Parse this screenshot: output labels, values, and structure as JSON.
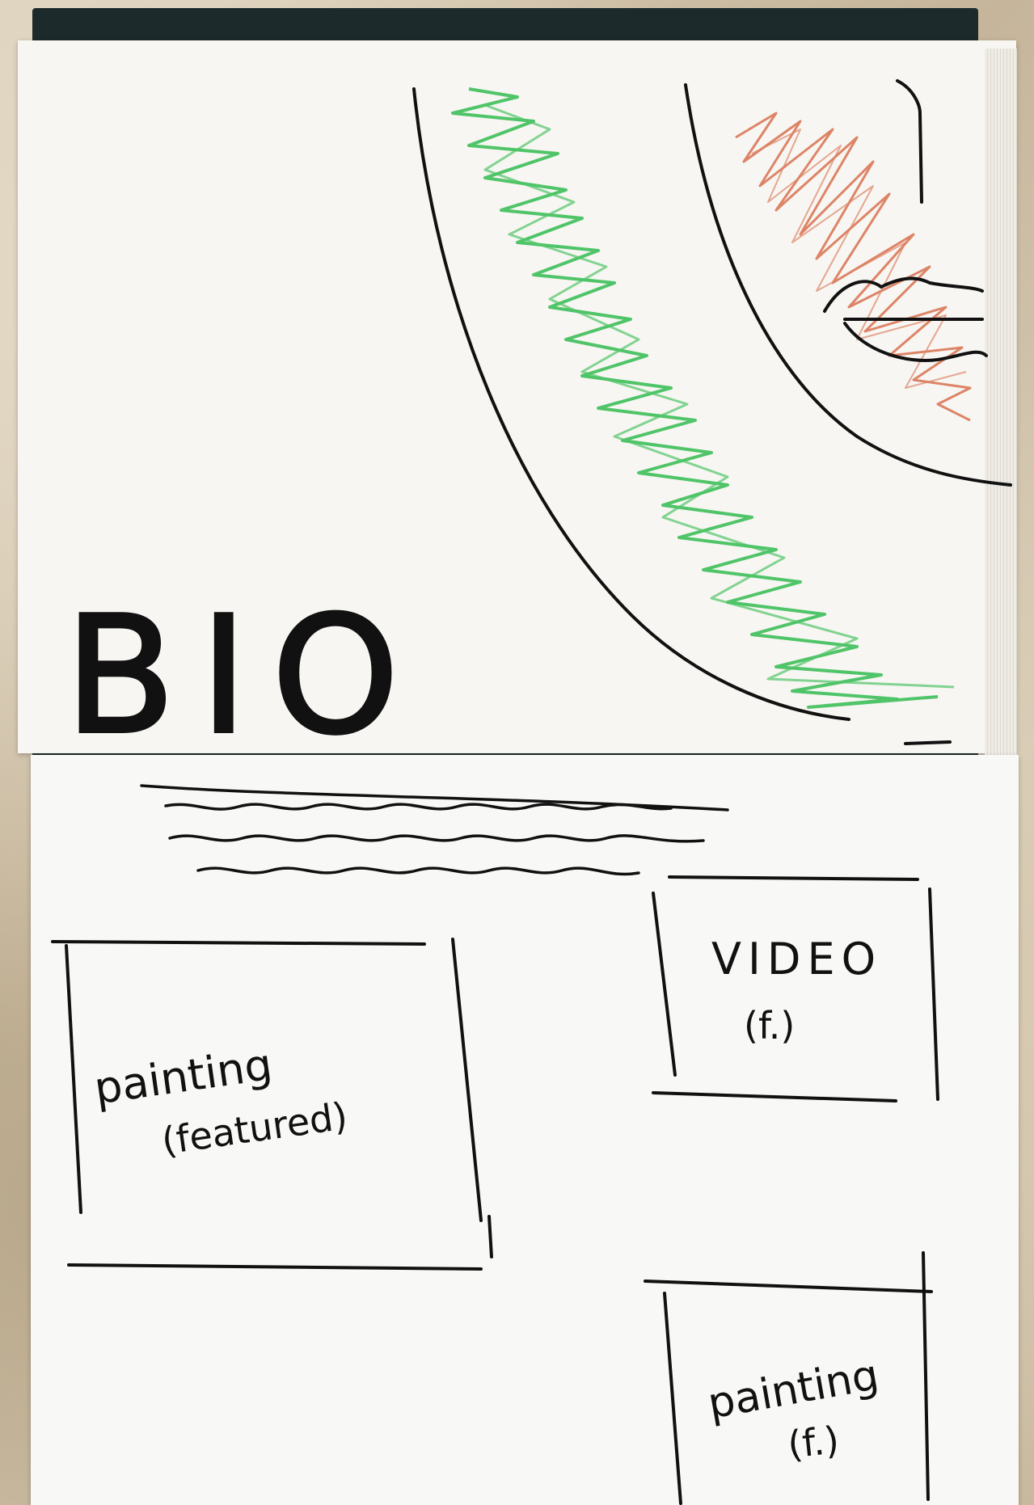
{
  "sketch": {
    "bio_label": "BIO",
    "featured_painting": {
      "title": "painting",
      "subtitle": "(featured)"
    },
    "video_box": {
      "title": "VIDEO",
      "subtitle": "(f.)"
    },
    "painting_box": {
      "title": "painting",
      "subtitle": "(f.)"
    },
    "colors": {
      "ink": "#111111",
      "green_scribble": "#3fbf5a",
      "red_scribble": "#d9714f",
      "paper": "#f7f6f2"
    }
  }
}
